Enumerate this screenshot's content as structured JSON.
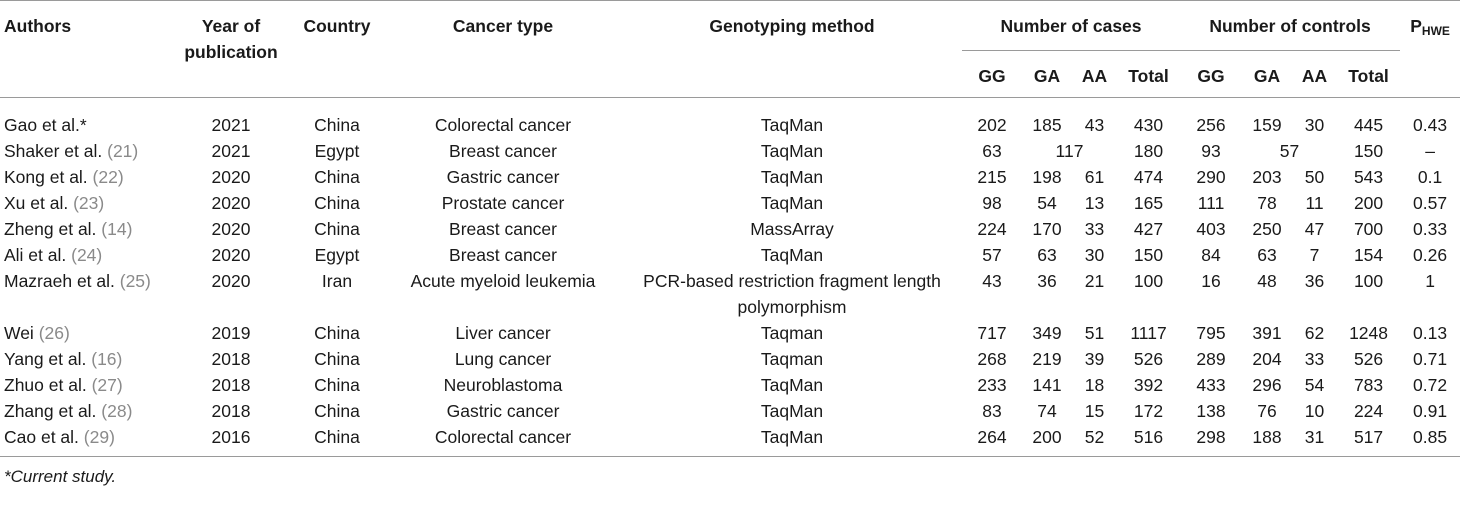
{
  "headers": {
    "authors": "Authors",
    "year": "Year of publication",
    "country": "Country",
    "cancer_type": "Cancer type",
    "method": "Genotyping method",
    "cases_group": "Number of cases",
    "controls_group": "Number of controls",
    "phwe_main": "P",
    "phwe_sub": "HWE",
    "gg": "GG",
    "ga": "GA",
    "aa": "AA",
    "total": "Total"
  },
  "rows": [
    {
      "author": "Gao et al.*",
      "ref": "",
      "year": "2021",
      "country": "China",
      "cancer": "Colorectal cancer",
      "method": "TaqMan",
      "c_gg": "202",
      "c_ga": "185",
      "c_aa": "43",
      "c_total": "430",
      "k_gg": "256",
      "k_ga": "159",
      "k_aa": "30",
      "k_total": "445",
      "phwe": "0.43"
    },
    {
      "author": "Shaker et al. ",
      "ref": "(21)",
      "year": "2021",
      "country": "Egypt",
      "cancer": "Breast cancer",
      "method": "TaqMan",
      "c_gg": "63",
      "c_gaaa": "117",
      "c_total": "180",
      "k_gg": "93",
      "k_gaaa": "57",
      "k_total": "150",
      "phwe": "–"
    },
    {
      "author": "Kong et al. ",
      "ref": "(22)",
      "year": "2020",
      "country": "China",
      "cancer": "Gastric cancer",
      "method": "TaqMan",
      "c_gg": "215",
      "c_ga": "198",
      "c_aa": "61",
      "c_total": "474",
      "k_gg": "290",
      "k_ga": "203",
      "k_aa": "50",
      "k_total": "543",
      "phwe": "0.1"
    },
    {
      "author": "Xu et al. ",
      "ref": "(23)",
      "year": "2020",
      "country": "China",
      "cancer": "Prostate cancer",
      "method": "TaqMan",
      "c_gg": "98",
      "c_ga": "54",
      "c_aa": "13",
      "c_total": "165",
      "k_gg": "111",
      "k_ga": "78",
      "k_aa": "11",
      "k_total": "200",
      "phwe": "0.57"
    },
    {
      "author": "Zheng et al. ",
      "ref": "(14)",
      "year": "2020",
      "country": "China",
      "cancer": "Breast cancer",
      "method": "MassArray",
      "c_gg": "224",
      "c_ga": "170",
      "c_aa": "33",
      "c_total": "427",
      "k_gg": "403",
      "k_ga": "250",
      "k_aa": "47",
      "k_total": "700",
      "phwe": "0.33"
    },
    {
      "author": "Ali et al. ",
      "ref": "(24)",
      "year": "2020",
      "country": "Egypt",
      "cancer": "Breast cancer",
      "method": "TaqMan",
      "c_gg": "57",
      "c_ga": "63",
      "c_aa": "30",
      "c_total": "150",
      "k_gg": "84",
      "k_ga": "63",
      "k_aa": "7",
      "k_total": "154",
      "phwe": "0.26"
    },
    {
      "author": "Mazraeh et al. ",
      "ref": "(25)",
      "year": "2020",
      "country": "Iran",
      "cancer": "Acute myeloid leukemia",
      "method": "PCR-based restriction fragment length polymorphism",
      "c_gg": "43",
      "c_ga": "36",
      "c_aa": "21",
      "c_total": "100",
      "k_gg": "16",
      "k_ga": "48",
      "k_aa": "36",
      "k_total": "100",
      "phwe": "1"
    },
    {
      "author": "Wei ",
      "ref": "(26)",
      "year": "2019",
      "country": "China",
      "cancer": "Liver cancer",
      "method": "Taqman",
      "c_gg": "717",
      "c_ga": "349",
      "c_aa": "51",
      "c_total": "1117",
      "k_gg": "795",
      "k_ga": "391",
      "k_aa": "62",
      "k_total": "1248",
      "phwe": "0.13"
    },
    {
      "author": "Yang et al. ",
      "ref": "(16)",
      "year": "2018",
      "country": "China",
      "cancer": "Lung cancer",
      "method": "Taqman",
      "c_gg": "268",
      "c_ga": "219",
      "c_aa": "39",
      "c_total": "526",
      "k_gg": "289",
      "k_ga": "204",
      "k_aa": "33",
      "k_total": "526",
      "phwe": "0.71"
    },
    {
      "author": "Zhuo et al. ",
      "ref": "(27)",
      "year": "2018",
      "country": "China",
      "cancer": "Neuroblastoma",
      "method": "TaqMan",
      "c_gg": "233",
      "c_ga": "141",
      "c_aa": "18",
      "c_total": "392",
      "k_gg": "433",
      "k_ga": "296",
      "k_aa": "54",
      "k_total": "783",
      "phwe": "0.72"
    },
    {
      "author": "Zhang et al. ",
      "ref": "(28)",
      "year": "2018",
      "country": "China",
      "cancer": "Gastric cancer",
      "method": "TaqMan",
      "c_gg": "83",
      "c_ga": "74",
      "c_aa": "15",
      "c_total": "172",
      "k_gg": "138",
      "k_ga": "76",
      "k_aa": "10",
      "k_total": "224",
      "phwe": "0.91"
    },
    {
      "author": "Cao et al. ",
      "ref": "(29)",
      "year": "2016",
      "country": "China",
      "cancer": "Colorectal cancer",
      "method": "TaqMan",
      "c_gg": "264",
      "c_ga": "200",
      "c_aa": "52",
      "c_total": "516",
      "k_gg": "298",
      "k_ga": "188",
      "k_aa": "31",
      "k_total": "517",
      "phwe": "0.85"
    }
  ],
  "footnote": "*Current study.",
  "colors": {
    "text": "#1a1a1a",
    "reference": "#8a8a8a",
    "rule": "#9a9a9a"
  }
}
